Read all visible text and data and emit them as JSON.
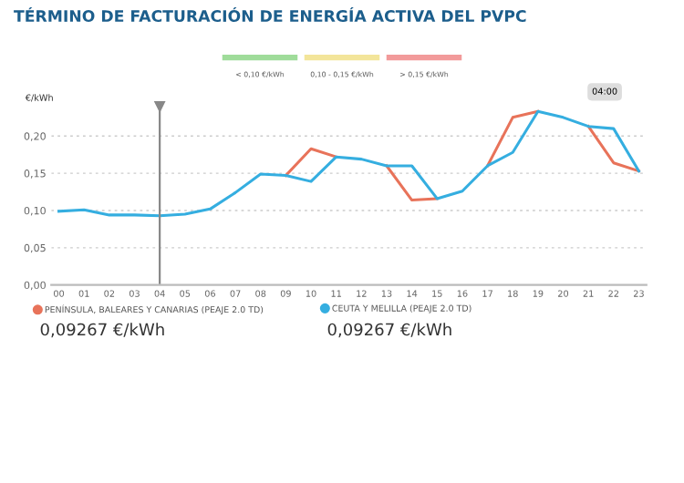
{
  "chart_data": {
    "type": "line",
    "title": "TÉRMINO DE FACTURACIÓN DE ENERGÍA ACTIVA DEL PVPC",
    "ylabel": "€/kWh",
    "categories": [
      "00",
      "01",
      "02",
      "03",
      "04",
      "05",
      "06",
      "07",
      "08",
      "09",
      "10",
      "11",
      "12",
      "13",
      "14",
      "15",
      "16",
      "17",
      "18",
      "19",
      "20",
      "21",
      "22",
      "23"
    ],
    "series": [
      {
        "name": "PENÍNSULA, BALEARES Y CANARIAS (PEAJE 2.0 TD)",
        "color": "#e8735a",
        "values": [
          null,
          null,
          null,
          null,
          null,
          null,
          null,
          null,
          null,
          0.147,
          0.183,
          0.172,
          null,
          0.16,
          0.114,
          0.116,
          null,
          0.16,
          0.225,
          0.233,
          null,
          0.213,
          0.164,
          0.153
        ]
      },
      {
        "name": "CEUTA Y MELILLA (PEAJE 2.0 TD)",
        "color": "#35aee0",
        "values": [
          0.099,
          0.101,
          0.094,
          0.094,
          0.093,
          0.095,
          0.102,
          0.124,
          0.149,
          0.147,
          0.139,
          0.172,
          0.169,
          0.16,
          0.16,
          0.116,
          0.126,
          0.16,
          0.178,
          0.233,
          0.225,
          0.213,
          0.21,
          0.153
        ]
      }
    ],
    "ylim": [
      0,
      0.24
    ],
    "yticks": [
      {
        "value": 0,
        "label": "0,00"
      },
      {
        "value": 0.05,
        "label": "0,05"
      },
      {
        "value": 0.1,
        "label": "0,10"
      },
      {
        "value": 0.15,
        "label": "0,15"
      },
      {
        "value": 0.2,
        "label": "0,20"
      }
    ],
    "grid": "y",
    "legend": "bottom",
    "marker": "none",
    "line_style": "solid",
    "ref_lines": [
      {
        "axis": "x",
        "value": "04",
        "color": "#888888"
      }
    ],
    "annotations": [
      "< 0,10 €/kWh",
      "0,10 - 0,15 €/kWh",
      "> 0,15 €/kWh",
      "04:00",
      "0,09267 €/kWh",
      "0,09267 €/kWh"
    ]
  }
}
